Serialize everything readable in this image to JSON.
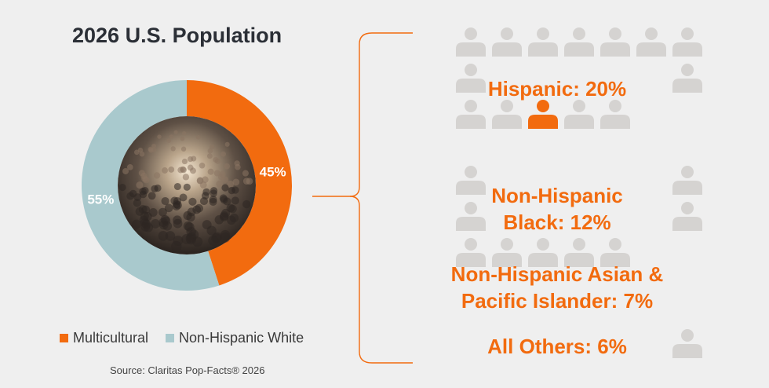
{
  "header": {
    "title": "2026 U.S. Population"
  },
  "chart_data": {
    "type": "pie",
    "title": "2026 U.S. Population",
    "donut": true,
    "slices": [
      {
        "label": "Multicultural",
        "value": 45,
        "display": "45%",
        "color": "#f26b0f"
      },
      {
        "label": "Non-Hispanic White",
        "value": 55,
        "display": "55%",
        "color": "#a9c9cd"
      }
    ],
    "legend_position": "bottom"
  },
  "legend": [
    {
      "label": "Multicultural",
      "color": "#f26b0f"
    },
    {
      "label": "Non-Hispanic White",
      "color": "#a9c9cd"
    }
  ],
  "breakdown": [
    {
      "lines": [
        "Hispanic: 20%"
      ]
    },
    {
      "lines": [
        "Non-Hispanic",
        "Black: 12%"
      ]
    },
    {
      "lines": [
        "Non-Hispanic Asian &",
        "Pacific Islander: 7%"
      ]
    },
    {
      "lines": [
        "All Others: 6%"
      ]
    }
  ],
  "source": "Source: Claritas Pop-Facts® 2026",
  "colors": {
    "accent": "#f26b0f",
    "muted": "#d5d3d1",
    "secondary": "#a9c9cd"
  }
}
